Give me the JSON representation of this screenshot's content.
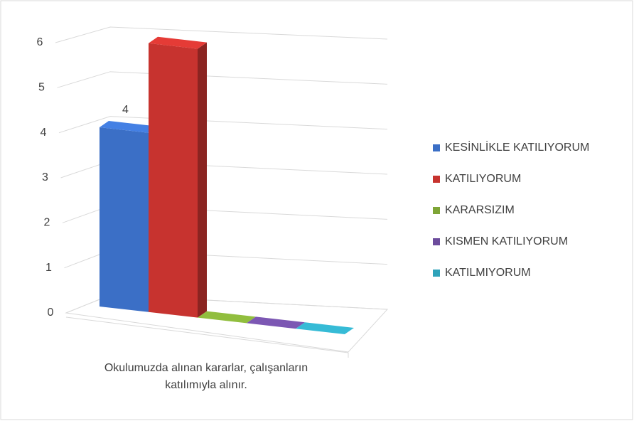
{
  "chart_data": {
    "type": "bar3d",
    "categories": [
      "Okulumuzda alınan kararlar, çalışanların katılımıyla alınır."
    ],
    "series": [
      {
        "name": "KESİNLİKLE KATILIYORUM",
        "color": "#3b6fc6",
        "values": [
          4
        ],
        "data_labels": true
      },
      {
        "name": "KATILIYORUM",
        "color": "#c7332f",
        "values": [
          6
        ]
      },
      {
        "name": "KARARSIZIM",
        "color": "#7ea536",
        "values": [
          0
        ]
      },
      {
        "name": "KISMEN KATILIYORUM",
        "color": "#6c4c9c",
        "values": [
          0
        ]
      },
      {
        "name": "KATILMIYORUM",
        "color": "#2fa3ba",
        "values": [
          0
        ]
      }
    ],
    "ylim": [
      0,
      6
    ],
    "yticks": [
      0,
      1,
      2,
      3,
      4,
      5,
      6
    ],
    "grid": true,
    "legend": "right"
  }
}
